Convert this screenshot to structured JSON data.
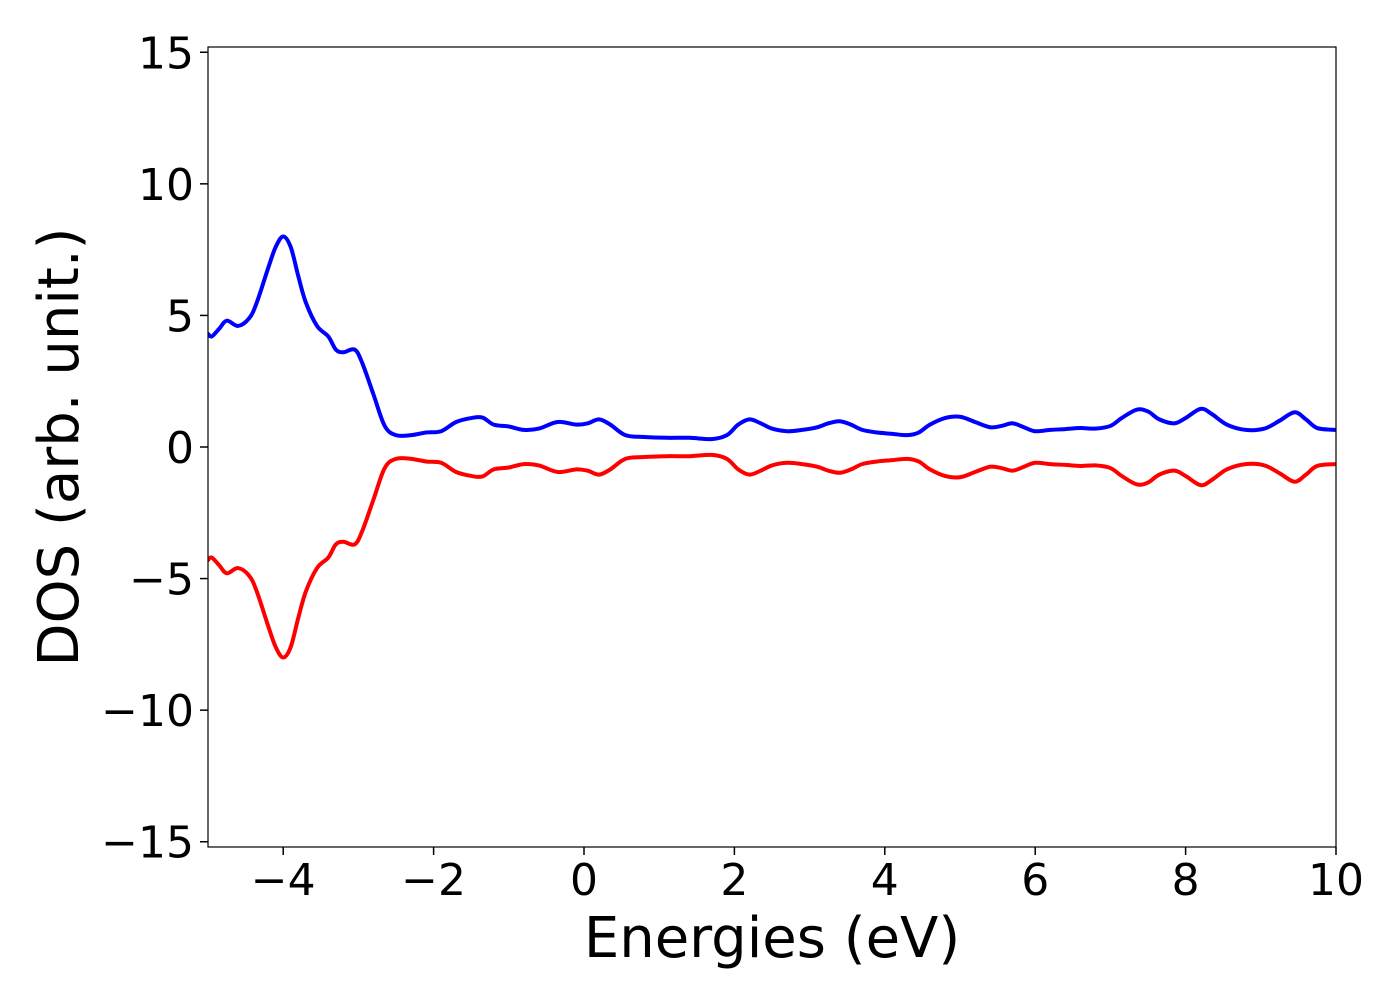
{
  "chart_data": {
    "type": "line",
    "title": "",
    "xlabel": "Energies (eV)",
    "ylabel": "DOS (arb. unit.)",
    "xlim": [
      -5,
      10
    ],
    "ylim": [
      -15.2,
      15.2
    ],
    "x_ticks": [
      -4,
      -2,
      0,
      2,
      4,
      6,
      8,
      10
    ],
    "x_tick_labels": [
      "−4",
      "−2",
      "0",
      "2",
      "4",
      "6",
      "8",
      "10"
    ],
    "y_ticks": [
      -15,
      -10,
      -5,
      0,
      5,
      10,
      15
    ],
    "y_tick_labels": [
      "−15",
      "−10",
      "−5",
      "0",
      "5",
      "10",
      "15"
    ],
    "grid": false,
    "legend": "none",
    "series": [
      {
        "color": "#0000ff",
        "points": [
          [
            -5.0,
            4.3
          ],
          [
            -4.95,
            4.2
          ],
          [
            -4.85,
            4.5
          ],
          [
            -4.75,
            4.8
          ],
          [
            -4.6,
            4.6
          ],
          [
            -4.45,
            4.9
          ],
          [
            -4.35,
            5.5
          ],
          [
            -4.2,
            6.8
          ],
          [
            -4.1,
            7.6
          ],
          [
            -4.0,
            8.0
          ],
          [
            -3.9,
            7.6
          ],
          [
            -3.8,
            6.5
          ],
          [
            -3.7,
            5.5
          ],
          [
            -3.55,
            4.6
          ],
          [
            -3.4,
            4.2
          ],
          [
            -3.3,
            3.7
          ],
          [
            -3.2,
            3.6
          ],
          [
            -3.05,
            3.7
          ],
          [
            -2.95,
            3.2
          ],
          [
            -2.8,
            2.0
          ],
          [
            -2.65,
            0.8
          ],
          [
            -2.5,
            0.45
          ],
          [
            -2.3,
            0.45
          ],
          [
            -2.1,
            0.55
          ],
          [
            -1.9,
            0.6
          ],
          [
            -1.7,
            0.95
          ],
          [
            -1.5,
            1.1
          ],
          [
            -1.35,
            1.12
          ],
          [
            -1.2,
            0.85
          ],
          [
            -1.0,
            0.78
          ],
          [
            -0.8,
            0.65
          ],
          [
            -0.6,
            0.7
          ],
          [
            -0.35,
            0.95
          ],
          [
            -0.1,
            0.85
          ],
          [
            0.05,
            0.9
          ],
          [
            0.2,
            1.05
          ],
          [
            0.35,
            0.85
          ],
          [
            0.55,
            0.45
          ],
          [
            0.8,
            0.38
          ],
          [
            1.1,
            0.35
          ],
          [
            1.4,
            0.35
          ],
          [
            1.7,
            0.3
          ],
          [
            1.9,
            0.45
          ],
          [
            2.05,
            0.85
          ],
          [
            2.2,
            1.05
          ],
          [
            2.35,
            0.9
          ],
          [
            2.5,
            0.7
          ],
          [
            2.7,
            0.6
          ],
          [
            2.9,
            0.65
          ],
          [
            3.1,
            0.75
          ],
          [
            3.25,
            0.9
          ],
          [
            3.4,
            0.98
          ],
          [
            3.55,
            0.85
          ],
          [
            3.7,
            0.65
          ],
          [
            3.9,
            0.55
          ],
          [
            4.1,
            0.5
          ],
          [
            4.3,
            0.45
          ],
          [
            4.45,
            0.55
          ],
          [
            4.6,
            0.85
          ],
          [
            4.8,
            1.1
          ],
          [
            5.0,
            1.15
          ],
          [
            5.2,
            0.95
          ],
          [
            5.4,
            0.75
          ],
          [
            5.55,
            0.8
          ],
          [
            5.7,
            0.9
          ],
          [
            5.85,
            0.75
          ],
          [
            6.0,
            0.6
          ],
          [
            6.2,
            0.65
          ],
          [
            6.4,
            0.68
          ],
          [
            6.6,
            0.72
          ],
          [
            6.8,
            0.7
          ],
          [
            7.0,
            0.8
          ],
          [
            7.15,
            1.1
          ],
          [
            7.35,
            1.42
          ],
          [
            7.5,
            1.35
          ],
          [
            7.65,
            1.05
          ],
          [
            7.85,
            0.9
          ],
          [
            8.0,
            1.1
          ],
          [
            8.2,
            1.45
          ],
          [
            8.35,
            1.25
          ],
          [
            8.55,
            0.85
          ],
          [
            8.8,
            0.65
          ],
          [
            9.05,
            0.7
          ],
          [
            9.25,
            1.0
          ],
          [
            9.45,
            1.32
          ],
          [
            9.6,
            1.05
          ],
          [
            9.75,
            0.72
          ],
          [
            10.0,
            0.65
          ]
        ]
      },
      {
        "color": "#ff0000",
        "points": [
          [
            -5.0,
            -4.3
          ],
          [
            -4.95,
            -4.2
          ],
          [
            -4.85,
            -4.5
          ],
          [
            -4.75,
            -4.8
          ],
          [
            -4.6,
            -4.6
          ],
          [
            -4.45,
            -4.9
          ],
          [
            -4.35,
            -5.5
          ],
          [
            -4.2,
            -6.8
          ],
          [
            -4.1,
            -7.6
          ],
          [
            -4.0,
            -8.0
          ],
          [
            -3.9,
            -7.6
          ],
          [
            -3.8,
            -6.5
          ],
          [
            -3.7,
            -5.5
          ],
          [
            -3.55,
            -4.6
          ],
          [
            -3.4,
            -4.2
          ],
          [
            -3.3,
            -3.7
          ],
          [
            -3.2,
            -3.6
          ],
          [
            -3.05,
            -3.7
          ],
          [
            -2.95,
            -3.2
          ],
          [
            -2.8,
            -2.0
          ],
          [
            -2.65,
            -0.8
          ],
          [
            -2.5,
            -0.45
          ],
          [
            -2.3,
            -0.45
          ],
          [
            -2.1,
            -0.55
          ],
          [
            -1.9,
            -0.6
          ],
          [
            -1.7,
            -0.95
          ],
          [
            -1.5,
            -1.1
          ],
          [
            -1.35,
            -1.12
          ],
          [
            -1.2,
            -0.85
          ],
          [
            -1.0,
            -0.78
          ],
          [
            -0.8,
            -0.65
          ],
          [
            -0.6,
            -0.7
          ],
          [
            -0.35,
            -0.95
          ],
          [
            -0.1,
            -0.85
          ],
          [
            0.05,
            -0.9
          ],
          [
            0.2,
            -1.05
          ],
          [
            0.35,
            -0.85
          ],
          [
            0.55,
            -0.45
          ],
          [
            0.8,
            -0.38
          ],
          [
            1.1,
            -0.35
          ],
          [
            1.4,
            -0.35
          ],
          [
            1.7,
            -0.3
          ],
          [
            1.9,
            -0.45
          ],
          [
            2.05,
            -0.85
          ],
          [
            2.2,
            -1.05
          ],
          [
            2.35,
            -0.9
          ],
          [
            2.5,
            -0.7
          ],
          [
            2.7,
            -0.6
          ],
          [
            2.9,
            -0.65
          ],
          [
            3.1,
            -0.75
          ],
          [
            3.25,
            -0.9
          ],
          [
            3.4,
            -0.98
          ],
          [
            3.55,
            -0.85
          ],
          [
            3.7,
            -0.65
          ],
          [
            3.9,
            -0.55
          ],
          [
            4.1,
            -0.5
          ],
          [
            4.3,
            -0.45
          ],
          [
            4.45,
            -0.55
          ],
          [
            4.6,
            -0.85
          ],
          [
            4.8,
            -1.1
          ],
          [
            5.0,
            -1.15
          ],
          [
            5.2,
            -0.95
          ],
          [
            5.4,
            -0.75
          ],
          [
            5.55,
            -0.8
          ],
          [
            5.7,
            -0.9
          ],
          [
            5.85,
            -0.75
          ],
          [
            6.0,
            -0.6
          ],
          [
            6.2,
            -0.65
          ],
          [
            6.4,
            -0.68
          ],
          [
            6.6,
            -0.72
          ],
          [
            6.8,
            -0.7
          ],
          [
            7.0,
            -0.8
          ],
          [
            7.15,
            -1.1
          ],
          [
            7.35,
            -1.42
          ],
          [
            7.5,
            -1.35
          ],
          [
            7.65,
            -1.05
          ],
          [
            7.85,
            -0.9
          ],
          [
            8.0,
            -1.1
          ],
          [
            8.2,
            -1.45
          ],
          [
            8.35,
            -1.25
          ],
          [
            8.55,
            -0.85
          ],
          [
            8.8,
            -0.65
          ],
          [
            9.05,
            -0.7
          ],
          [
            9.25,
            -1.0
          ],
          [
            9.45,
            -1.32
          ],
          [
            9.6,
            -1.05
          ],
          [
            9.75,
            -0.72
          ],
          [
            10.0,
            -0.65
          ]
        ]
      }
    ]
  }
}
